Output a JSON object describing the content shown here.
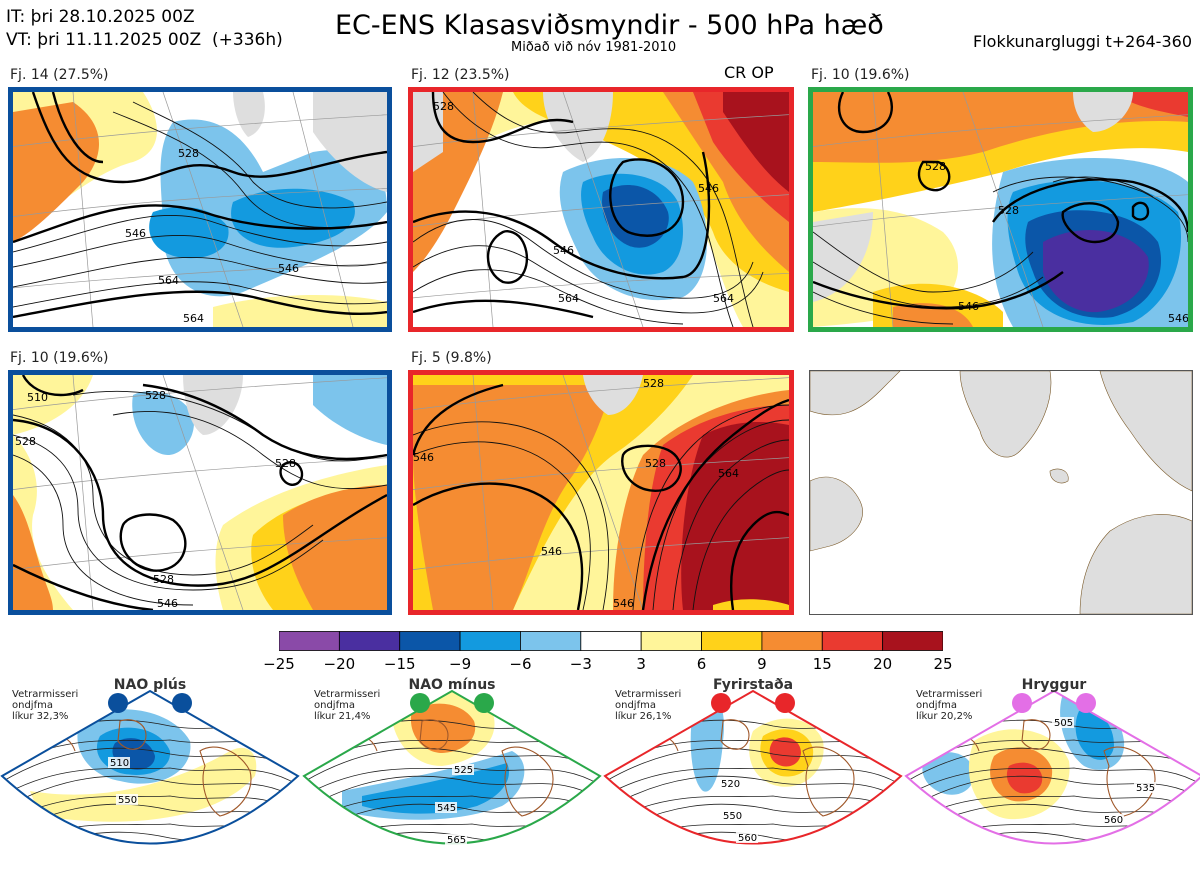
{
  "header": {
    "it_line": "IT: þri 28.10.2025 00Z",
    "vt_line": "VT: þri 11.11.2025 00Z  (+336h)",
    "title": "EC-ENS Klasasviðsmyndir - 500 hPa hæð",
    "subtitle": "Miðað við nóv 1981-2010",
    "window": "Flokkunargluggi t+264-360"
  },
  "panels": [
    {
      "label": "Fj. 14 (27.5%)",
      "border": "#0a4f9c",
      "contours": [
        "528",
        "546",
        "564",
        "564",
        "546"
      ]
    },
    {
      "label": "Fj. 12 (23.5%)",
      "border": "#e8262a",
      "tag": "CR OP",
      "contours": [
        "528",
        "546",
        "564",
        "546",
        "564"
      ]
    },
    {
      "label": "Fj. 10 (19.6%)",
      "border": "#2aa84a",
      "contours": [
        "528",
        "528",
        "546",
        "546"
      ]
    },
    {
      "label": "Fj. 10 (19.6%)",
      "border": "#0a4f9c",
      "contours": [
        "510",
        "528",
        "528",
        "528",
        "546",
        "528"
      ]
    },
    {
      "label": "Fj. 5 (9.8%)",
      "border": "#e8262a",
      "contours": [
        "528",
        "528",
        "546",
        "546",
        "564",
        "546"
      ]
    }
  ],
  "colorbar": {
    "ticks": [
      "−25",
      "−20",
      "−15",
      "−9",
      "−6",
      "−3",
      "3",
      "6",
      "9",
      "15",
      "20",
      "25"
    ],
    "colors": [
      "#8a4aa8",
      "#4a2fa0",
      "#0b56a8",
      "#139adf",
      "#7cc4ec",
      "#ffffff",
      "#fff59a",
      "#ffd21a",
      "#f58c32",
      "#ea3a30",
      "#a8121d"
    ]
  },
  "regimes": [
    {
      "name": "NAO plús",
      "stat1": "Vetrarmisseri",
      "stat2": "ondjfma",
      "stat3": "líkur 32,3%",
      "color": "#0a4f9c",
      "labels": [
        "510",
        "550"
      ]
    },
    {
      "name": "NAO mínus",
      "stat1": "Vetrarmisseri",
      "stat2": "ondjfma",
      "stat3": "líkur 21,4%",
      "color": "#2aa84a",
      "labels": [
        "525",
        "545",
        "565"
      ]
    },
    {
      "name": "Fyrirstaða",
      "stat1": "Vetrarmisseri",
      "stat2": "ondjfma",
      "stat3": "líkur 26,1%",
      "color": "#e8262a",
      "labels": [
        "520",
        "550",
        "560"
      ]
    },
    {
      "name": "Hryggur",
      "stat1": "Vetrarmisseri",
      "stat2": "ondjfma",
      "stat3": "líkur 20,2%",
      "color": "#e36fe6",
      "labels": [
        "505",
        "535",
        "560"
      ]
    }
  ]
}
